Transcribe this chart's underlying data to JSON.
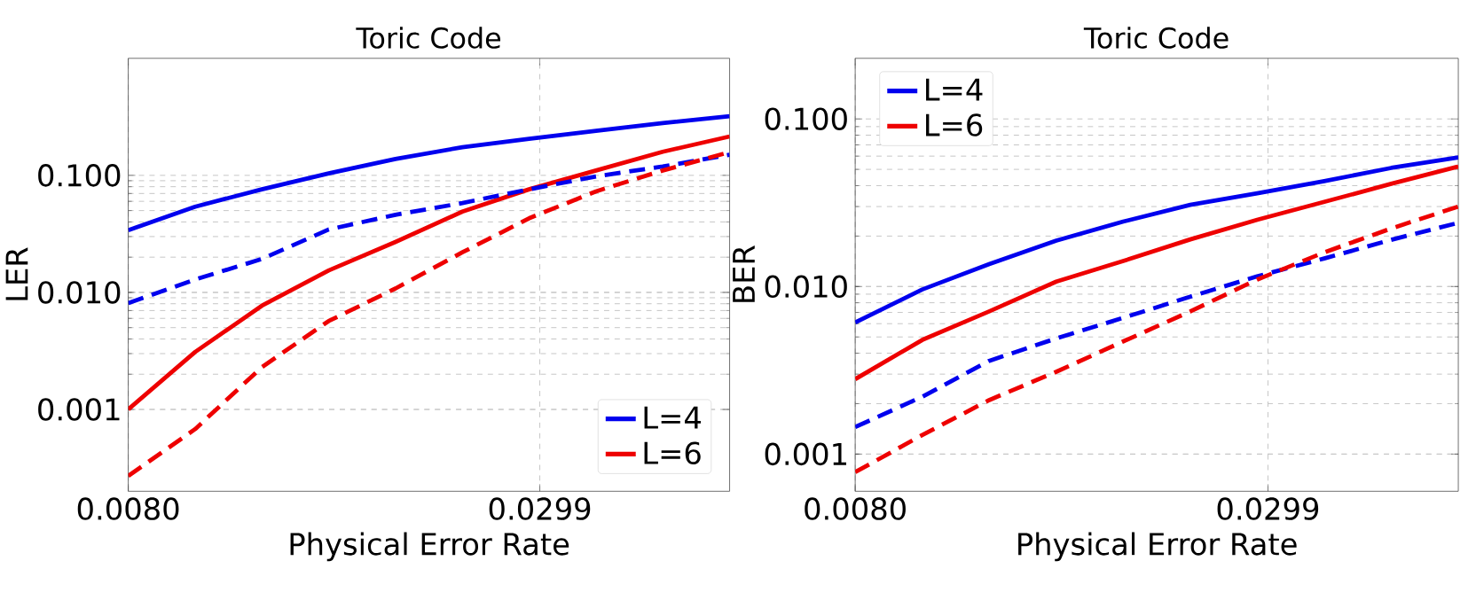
{
  "chart_data": [
    {
      "type": "line",
      "title": "Toric Code",
      "xlabel": "Physical Error Rate",
      "ylabel": "LER",
      "log": "y",
      "grid": true,
      "legend": "bottom right",
      "xlim": [
        0.008,
        0.04
      ],
      "ylim": [
        0.0002,
        1
      ],
      "xticks": [
        {
          "value": 0.008,
          "label": "0.0080"
        },
        0.0299
      ],
      "yticks": [
        {
          "value": 0.001,
          "label": "0.001"
        },
        {
          "value": 0.01,
          "label": "0.010"
        },
        {
          "value": 0.1,
          "label": "0.100"
        }
      ],
      "x": [
        0.008,
        0.01156,
        0.01511,
        0.01867,
        0.02222,
        0.02578,
        0.02933,
        0.03289,
        0.03644,
        0.04
      ],
      "series": [
        {
          "name": "L=4",
          "color": "#0000ee",
          "line_style": "solid",
          "values": [
            0.034,
            0.054,
            0.076,
            0.104,
            0.138,
            0.174,
            0.205,
            0.24,
            0.28,
            0.32
          ]
        },
        {
          "name": "L=6",
          "color": "#ee0000",
          "line_style": "solid",
          "values": [
            0.001,
            0.0031,
            0.0077,
            0.0154,
            0.027,
            0.049,
            0.076,
            0.11,
            0.159,
            0.215
          ]
        },
        {
          "color": "#0000ee",
          "line_style": "dashed",
          "values": [
            0.0081,
            0.0129,
            0.0193,
            0.0345,
            0.046,
            0.058,
            0.076,
            0.098,
            0.119,
            0.15
          ]
        },
        {
          "color": "#ee0000",
          "line_style": "dashed",
          "values": [
            0.00027,
            0.00068,
            0.0023,
            0.0057,
            0.0108,
            0.022,
            0.043,
            0.073,
            0.11,
            0.158
          ]
        }
      ]
    },
    {
      "type": "line",
      "title": "Toric Code",
      "xlabel": "Physical Error Rate",
      "ylabel": "BER",
      "log": "y",
      "grid": true,
      "legend": "top left",
      "xlim": [
        0.008,
        0.04
      ],
      "ylim": [
        0.0006,
        0.23
      ],
      "xticks": [
        {
          "value": 0.008,
          "label": "0.0080"
        },
        0.0299
      ],
      "yticks": [
        {
          "value": 0.001,
          "label": "0.001"
        },
        {
          "value": 0.01,
          "label": "0.010"
        },
        {
          "value": 0.1,
          "label": "0.100"
        }
      ],
      "x": [
        0.008,
        0.01156,
        0.01511,
        0.01867,
        0.02222,
        0.02578,
        0.02933,
        0.03289,
        0.03644,
        0.04
      ],
      "series": [
        {
          "name": "L=4",
          "color": "#0000ee",
          "line_style": "solid",
          "values": [
            0.0061,
            0.0096,
            0.0136,
            0.0188,
            0.0244,
            0.0307,
            0.036,
            0.0425,
            0.051,
            0.059
          ]
        },
        {
          "name": "L=6",
          "color": "#ee0000",
          "line_style": "solid",
          "values": [
            0.0028,
            0.0048,
            0.0071,
            0.0107,
            0.0142,
            0.0191,
            0.025,
            0.032,
            0.041,
            0.052
          ]
        },
        {
          "color": "#0000ee",
          "line_style": "dashed",
          "values": [
            0.00145,
            0.0022,
            0.0036,
            0.0049,
            0.0065,
            0.0087,
            0.0115,
            0.0147,
            0.019,
            0.024
          ]
        },
        {
          "color": "#ee0000",
          "line_style": "dashed",
          "values": [
            0.00078,
            0.0013,
            0.0021,
            0.0031,
            0.0047,
            0.0071,
            0.011,
            0.016,
            0.0222,
            0.03
          ]
        }
      ]
    }
  ]
}
